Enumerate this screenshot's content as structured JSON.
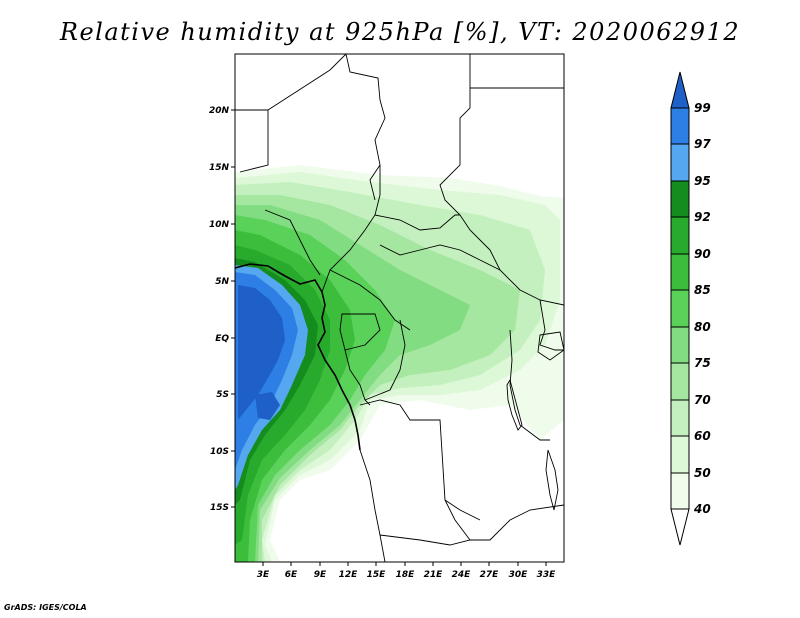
{
  "title": "Relative humidity at 925hPa [%], VT: 2020062912",
  "footer": "GrADS: IGES/COLA",
  "map": {
    "lat_labels": [
      "20N",
      "15N",
      "10N",
      "5N",
      "EQ",
      "5S",
      "10S",
      "15S"
    ],
    "lon_labels": [
      "3E",
      "6E",
      "9E",
      "12E",
      "15E",
      "18E",
      "21E",
      "24E",
      "27E",
      "30E",
      "33E"
    ]
  },
  "colorbar": {
    "labels": [
      "99",
      "97",
      "95",
      "92",
      "90",
      "85",
      "80",
      "75",
      "70",
      "60",
      "50",
      "40"
    ],
    "colors": [
      "#1e5fc8",
      "#2d7fe6",
      "#55a8f0",
      "#148c1e",
      "#28aa2d",
      "#3cbe3c",
      "#5ad25a",
      "#82dc82",
      "#a5e6a0",
      "#c3f0be",
      "#dcf8d6",
      "#f0fceb"
    ]
  }
}
